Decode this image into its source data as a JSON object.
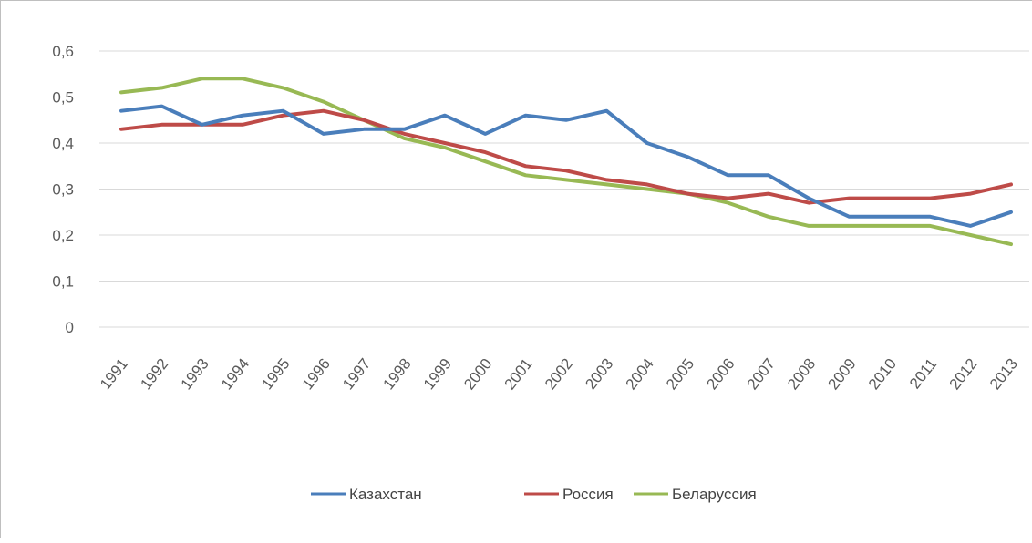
{
  "chart_data": {
    "type": "line",
    "title": "",
    "xlabel": "",
    "ylabel": "",
    "categories": [
      "1991",
      "1992",
      "1993",
      "1994",
      "1995",
      "1996",
      "1997",
      "1998",
      "1999",
      "2000",
      "2001",
      "2002",
      "2003",
      "2004",
      "2005",
      "2006",
      "2007",
      "2008",
      "2009",
      "2010",
      "2011",
      "2012",
      "2013"
    ],
    "y_ticks": [
      "0",
      "0,1",
      "0,2",
      "0,3",
      "0,4",
      "0,5",
      "0,6"
    ],
    "ylim": [
      0,
      0.6
    ],
    "grid": true,
    "legend_position": "bottom",
    "series": [
      {
        "name": "Казахстан",
        "color": "#4a7ebb",
        "values": [
          0.47,
          0.48,
          0.44,
          0.46,
          0.47,
          0.42,
          0.43,
          0.43,
          0.46,
          0.42,
          0.46,
          0.45,
          0.47,
          0.4,
          0.37,
          0.33,
          0.33,
          0.28,
          0.24,
          0.24,
          0.24,
          0.22,
          0.25
        ]
      },
      {
        "name": "Россия",
        "color": "#be4b48",
        "values": [
          0.43,
          0.44,
          0.44,
          0.44,
          0.46,
          0.47,
          0.45,
          0.42,
          0.4,
          0.38,
          0.35,
          0.34,
          0.32,
          0.31,
          0.29,
          0.28,
          0.29,
          0.27,
          0.28,
          0.28,
          0.28,
          0.29,
          0.31
        ]
      },
      {
        "name": "Беларуссия",
        "color": "#98b954",
        "values": [
          0.51,
          0.52,
          0.54,
          0.54,
          0.52,
          0.49,
          0.45,
          0.41,
          0.39,
          0.36,
          0.33,
          0.32,
          0.31,
          0.3,
          0.29,
          0.27,
          0.24,
          0.22,
          0.22,
          0.22,
          0.22,
          0.2,
          0.18
        ]
      }
    ]
  }
}
